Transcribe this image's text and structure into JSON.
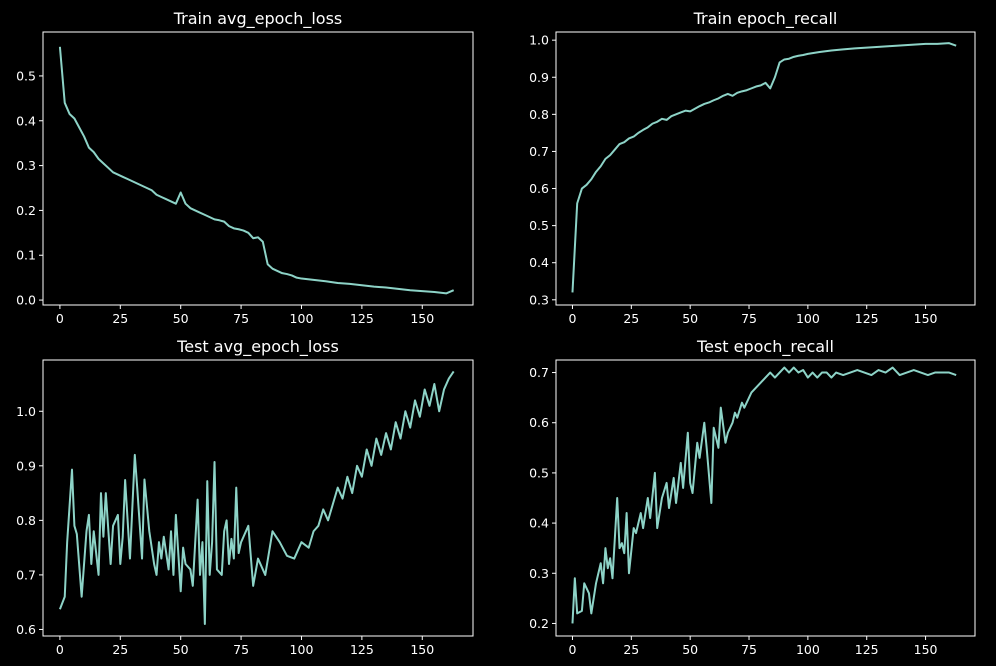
{
  "figure": {
    "background": "#000000",
    "line_color": "#8dd3c7",
    "axis_color": "#ffffff"
  },
  "chart_data": [
    {
      "type": "line",
      "title": "Train avg_epoch_loss",
      "xlabel": "",
      "ylabel": "",
      "xlim": [
        -7,
        171
      ],
      "ylim": [
        -0.011,
        0.598
      ],
      "xticks": [
        0,
        25,
        50,
        75,
        100,
        125,
        150
      ],
      "yticks": [
        0.0,
        0.1,
        0.2,
        0.3,
        0.4,
        0.5
      ],
      "ytick_labels": [
        "0.0",
        "0.1",
        "0.2",
        "0.3",
        "0.4",
        "0.5"
      ],
      "grid": false,
      "series": [
        {
          "x": [
            0,
            2,
            4,
            6,
            8,
            10,
            12,
            14,
            16,
            18,
            20,
            22,
            24,
            26,
            28,
            30,
            32,
            34,
            36,
            38,
            40,
            42,
            44,
            46,
            48,
            50,
            52,
            54,
            56,
            58,
            60,
            62,
            64,
            66,
            68,
            70,
            72,
            74,
            76,
            78,
            80,
            82,
            84,
            86,
            88,
            90,
            92,
            94,
            96,
            98,
            100,
            105,
            110,
            115,
            120,
            125,
            130,
            135,
            140,
            145,
            150,
            155,
            160,
            163
          ],
          "values": [
            0.565,
            0.44,
            0.415,
            0.405,
            0.385,
            0.365,
            0.34,
            0.33,
            0.315,
            0.305,
            0.295,
            0.285,
            0.28,
            0.275,
            0.27,
            0.265,
            0.26,
            0.255,
            0.25,
            0.245,
            0.235,
            0.23,
            0.225,
            0.22,
            0.215,
            0.24,
            0.215,
            0.205,
            0.2,
            0.195,
            0.19,
            0.185,
            0.18,
            0.178,
            0.175,
            0.165,
            0.16,
            0.158,
            0.155,
            0.15,
            0.138,
            0.14,
            0.13,
            0.08,
            0.07,
            0.065,
            0.06,
            0.058,
            0.055,
            0.05,
            0.048,
            0.045,
            0.042,
            0.038,
            0.036,
            0.033,
            0.03,
            0.028,
            0.025,
            0.022,
            0.02,
            0.018,
            0.015,
            0.022
          ]
        }
      ]
    },
    {
      "type": "line",
      "title": "Train epoch_recall",
      "xlabel": "",
      "ylabel": "",
      "xlim": [
        -7,
        171
      ],
      "ylim": [
        0.286,
        1.022
      ],
      "xticks": [
        0,
        25,
        50,
        75,
        100,
        125,
        150
      ],
      "yticks": [
        0.3,
        0.4,
        0.5,
        0.6,
        0.7,
        0.8,
        0.9,
        1.0
      ],
      "ytick_labels": [
        "0.3",
        "0.4",
        "0.5",
        "0.6",
        "0.7",
        "0.8",
        "0.9",
        "1.0"
      ],
      "grid": false,
      "series": [
        {
          "x": [
            0,
            2,
            4,
            6,
            8,
            10,
            12,
            14,
            16,
            18,
            20,
            22,
            24,
            26,
            28,
            30,
            32,
            34,
            36,
            38,
            40,
            42,
            44,
            46,
            48,
            50,
            52,
            54,
            56,
            58,
            60,
            62,
            64,
            66,
            68,
            70,
            72,
            74,
            76,
            78,
            80,
            82,
            84,
            86,
            88,
            90,
            92,
            94,
            96,
            98,
            100,
            105,
            110,
            115,
            120,
            125,
            130,
            135,
            140,
            145,
            150,
            155,
            160,
            163
          ],
          "values": [
            0.32,
            0.56,
            0.6,
            0.61,
            0.625,
            0.645,
            0.66,
            0.68,
            0.69,
            0.705,
            0.72,
            0.725,
            0.735,
            0.74,
            0.75,
            0.758,
            0.765,
            0.775,
            0.78,
            0.788,
            0.785,
            0.795,
            0.8,
            0.805,
            0.81,
            0.808,
            0.815,
            0.822,
            0.828,
            0.832,
            0.838,
            0.843,
            0.85,
            0.855,
            0.85,
            0.858,
            0.862,
            0.865,
            0.87,
            0.875,
            0.878,
            0.885,
            0.87,
            0.9,
            0.94,
            0.948,
            0.95,
            0.955,
            0.958,
            0.96,
            0.963,
            0.968,
            0.972,
            0.975,
            0.978,
            0.98,
            0.982,
            0.984,
            0.986,
            0.988,
            0.99,
            0.99,
            0.992,
            0.985
          ]
        }
      ]
    },
    {
      "type": "line",
      "title": "Test avg_epoch_loss",
      "xlabel": "",
      "ylabel": "",
      "xlim": [
        -7,
        171
      ],
      "ylim": [
        0.588,
        1.094
      ],
      "xticks": [
        0,
        25,
        50,
        75,
        100,
        125,
        150
      ],
      "yticks": [
        0.6,
        0.7,
        0.8,
        0.9,
        1.0
      ],
      "ytick_labels": [
        "0.6",
        "0.7",
        "0.8",
        "0.9",
        "1.0"
      ],
      "grid": false,
      "series": [
        {
          "x": [
            0,
            2,
            3,
            5,
            6,
            7,
            9,
            11,
            12,
            13,
            14,
            16,
            17,
            18,
            19,
            21,
            22,
            24,
            25,
            26,
            27,
            29,
            31,
            32,
            34,
            35,
            37,
            39,
            40,
            41,
            42,
            43,
            45,
            46,
            47,
            48,
            50,
            51,
            52,
            54,
            55,
            57,
            58,
            59,
            60,
            61,
            62,
            63,
            64,
            65,
            67,
            68,
            69,
            70,
            71,
            72,
            73,
            74,
            75,
            76,
            78,
            80,
            82,
            85,
            88,
            91,
            94,
            97,
            100,
            103,
            105,
            107,
            109,
            111,
            113,
            115,
            117,
            119,
            121,
            123,
            125,
            127,
            129,
            131,
            133,
            135,
            137,
            139,
            141,
            143,
            145,
            147,
            149,
            151,
            153,
            155,
            157,
            159,
            161,
            163
          ],
          "values": [
            0.637,
            0.66,
            0.76,
            0.893,
            0.79,
            0.775,
            0.66,
            0.78,
            0.81,
            0.72,
            0.78,
            0.7,
            0.85,
            0.77,
            0.85,
            0.72,
            0.79,
            0.81,
            0.72,
            0.77,
            0.874,
            0.73,
            0.92,
            0.86,
            0.73,
            0.875,
            0.78,
            0.72,
            0.7,
            0.76,
            0.73,
            0.77,
            0.71,
            0.78,
            0.7,
            0.81,
            0.67,
            0.75,
            0.72,
            0.71,
            0.68,
            0.838,
            0.7,
            0.76,
            0.61,
            0.872,
            0.7,
            0.76,
            0.907,
            0.71,
            0.7,
            0.78,
            0.8,
            0.72,
            0.766,
            0.73,
            0.86,
            0.74,
            0.76,
            0.77,
            0.79,
            0.68,
            0.73,
            0.7,
            0.78,
            0.76,
            0.735,
            0.73,
            0.76,
            0.75,
            0.78,
            0.79,
            0.82,
            0.8,
            0.83,
            0.86,
            0.84,
            0.88,
            0.85,
            0.9,
            0.88,
            0.93,
            0.9,
            0.95,
            0.92,
            0.96,
            0.93,
            0.98,
            0.95,
            1.0,
            0.97,
            1.02,
            0.99,
            1.04,
            1.01,
            1.05,
            1.0,
            1.04,
            1.06,
            1.073
          ]
        }
      ]
    },
    {
      "type": "line",
      "title": "Test epoch_recall",
      "xlabel": "",
      "ylabel": "",
      "xlim": [
        -7,
        171
      ],
      "ylim": [
        0.175,
        0.725
      ],
      "xticks": [
        0,
        25,
        50,
        75,
        100,
        125,
        150
      ],
      "yticks": [
        0.2,
        0.3,
        0.4,
        0.5,
        0.6,
        0.7
      ],
      "ytick_labels": [
        "0.2",
        "0.3",
        "0.4",
        "0.5",
        "0.6",
        "0.7"
      ],
      "grid": false,
      "series": [
        {
          "x": [
            0,
            1,
            2,
            4,
            5,
            7,
            8,
            10,
            12,
            13,
            14,
            15,
            16,
            17,
            18,
            19,
            20,
            21,
            22,
            23,
            24,
            26,
            27,
            29,
            30,
            32,
            33,
            35,
            36,
            38,
            40,
            41,
            43,
            44,
            46,
            47,
            49,
            50,
            51,
            53,
            54,
            56,
            57,
            59,
            60,
            62,
            63,
            65,
            66,
            68,
            69,
            70,
            72,
            73,
            75,
            76,
            78,
            80,
            82,
            84,
            86,
            88,
            90,
            92,
            94,
            96,
            98,
            100,
            102,
            104,
            106,
            108,
            110,
            112,
            115,
            118,
            121,
            124,
            127,
            130,
            133,
            136,
            139,
            142,
            145,
            148,
            151,
            154,
            157,
            160,
            163
          ],
          "values": [
            0.2,
            0.29,
            0.22,
            0.225,
            0.28,
            0.26,
            0.22,
            0.28,
            0.32,
            0.28,
            0.35,
            0.31,
            0.33,
            0.29,
            0.37,
            0.45,
            0.35,
            0.36,
            0.34,
            0.42,
            0.3,
            0.39,
            0.38,
            0.42,
            0.39,
            0.45,
            0.41,
            0.5,
            0.39,
            0.45,
            0.48,
            0.43,
            0.49,
            0.44,
            0.52,
            0.47,
            0.58,
            0.48,
            0.46,
            0.56,
            0.53,
            0.6,
            0.55,
            0.44,
            0.59,
            0.55,
            0.63,
            0.56,
            0.58,
            0.6,
            0.62,
            0.61,
            0.64,
            0.63,
            0.65,
            0.66,
            0.67,
            0.68,
            0.69,
            0.7,
            0.69,
            0.7,
            0.71,
            0.7,
            0.71,
            0.7,
            0.705,
            0.69,
            0.7,
            0.69,
            0.7,
            0.7,
            0.69,
            0.7,
            0.695,
            0.7,
            0.705,
            0.7,
            0.695,
            0.705,
            0.7,
            0.71,
            0.695,
            0.7,
            0.705,
            0.7,
            0.695,
            0.7,
            0.7,
            0.7,
            0.695
          ]
        }
      ]
    }
  ]
}
